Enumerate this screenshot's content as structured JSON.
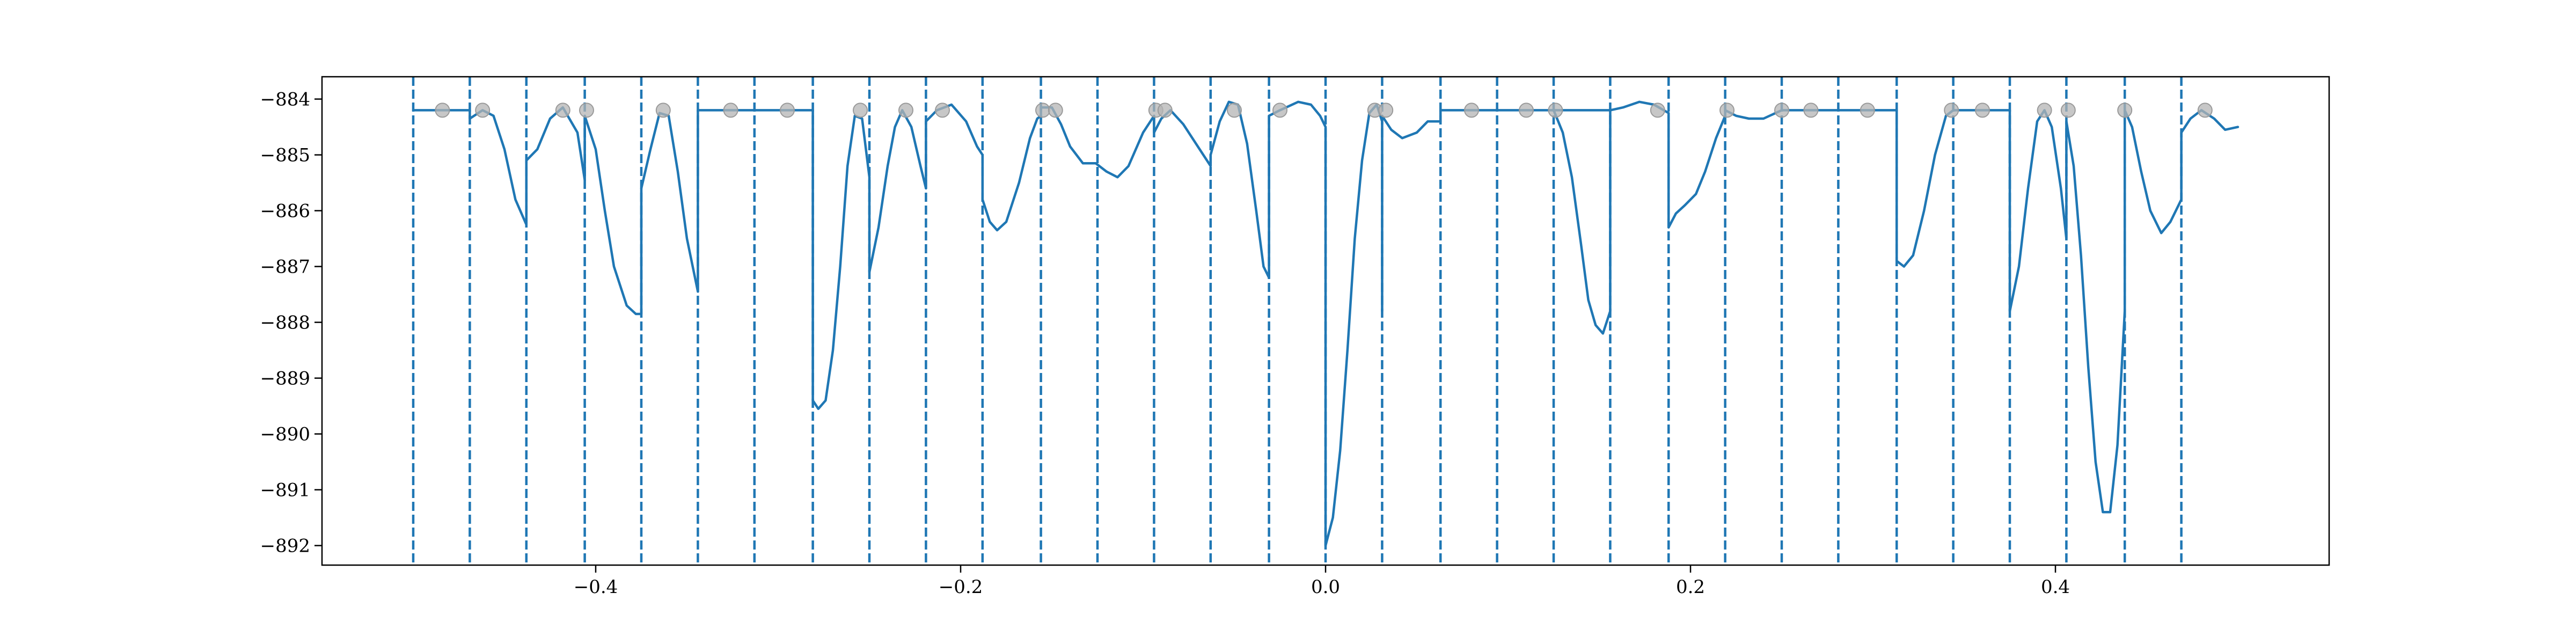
{
  "chart_data": {
    "type": "line",
    "title": "",
    "xlabel": "",
    "ylabel": "",
    "xlim": [
      -0.55,
      0.55
    ],
    "ylim": [
      -892.35,
      -883.6
    ],
    "x_ticks": [
      -0.4,
      -0.2,
      0.0,
      0.2,
      0.4
    ],
    "x_tick_labels": [
      "−0.4",
      "−0.2",
      "0.0",
      "0.2",
      "0.4"
    ],
    "y_ticks": [
      -884,
      -885,
      -886,
      -887,
      -888,
      -889,
      -890,
      -891,
      -892
    ],
    "y_tick_labels": [
      "−884",
      "−885",
      "−886",
      "−887",
      "−888",
      "−889",
      "−890",
      "−891",
      "−892"
    ],
    "grid": false,
    "colors": {
      "line": "#1f77b4",
      "markers": "#b4b4b4",
      "axes": "#000000"
    },
    "vertical_dashed_lines_x": [
      -0.5,
      -0.469,
      -0.438,
      -0.406,
      -0.375,
      -0.344,
      -0.313,
      -0.281,
      -0.25,
      -0.219,
      -0.188,
      -0.156,
      -0.125,
      -0.094,
      -0.063,
      -0.031,
      0.0,
      0.031,
      0.063,
      0.094,
      0.125,
      0.156,
      0.188,
      0.219,
      0.25,
      0.281,
      0.313,
      0.344,
      0.375,
      0.406,
      0.438,
      0.469
    ],
    "markers": {
      "y": -884.2,
      "x": [
        -0.484,
        -0.462,
        -0.418,
        -0.405,
        -0.363,
        -0.326,
        -0.295,
        -0.255,
        -0.23,
        -0.21,
        -0.155,
        -0.148,
        -0.093,
        -0.088,
        -0.05,
        -0.025,
        0.027,
        0.033,
        0.08,
        0.11,
        0.126,
        0.182,
        0.22,
        0.25,
        0.266,
        0.297,
        0.343,
        0.36,
        0.394,
        0.407,
        0.438,
        0.482
      ]
    },
    "series": [
      {
        "points": [
          [
            -0.5,
            -884.2
          ],
          [
            -0.469,
            -884.2
          ],
          [
            -0.469,
            -884.35
          ],
          [
            -0.462,
            -884.2
          ],
          [
            -0.456,
            -884.3
          ],
          [
            -0.45,
            -884.9
          ],
          [
            -0.444,
            -885.8
          ],
          [
            -0.438,
            -886.25
          ],
          [
            -0.438,
            -885.1
          ],
          [
            -0.432,
            -884.9
          ],
          [
            -0.425,
            -884.35
          ],
          [
            -0.418,
            -884.15
          ],
          [
            -0.41,
            -884.6
          ],
          [
            -0.406,
            -885.45
          ],
          [
            -0.406,
            -884.3
          ],
          [
            -0.4,
            -884.9
          ],
          [
            -0.395,
            -886.0
          ],
          [
            -0.39,
            -887.0
          ],
          [
            -0.383,
            -887.7
          ],
          [
            -0.378,
            -887.85
          ],
          [
            -0.375,
            -887.85
          ],
          [
            -0.375,
            -885.6
          ],
          [
            -0.37,
            -884.9
          ],
          [
            -0.365,
            -884.25
          ],
          [
            -0.36,
            -884.3
          ],
          [
            -0.355,
            -885.3
          ],
          [
            -0.35,
            -886.5
          ],
          [
            -0.344,
            -887.45
          ],
          [
            -0.344,
            -884.2
          ],
          [
            -0.281,
            -884.2
          ],
          [
            -0.281,
            -889.4
          ],
          [
            -0.278,
            -889.55
          ],
          [
            -0.274,
            -889.4
          ],
          [
            -0.27,
            -888.5
          ],
          [
            -0.266,
            -887.0
          ],
          [
            -0.262,
            -885.2
          ],
          [
            -0.258,
            -884.3
          ],
          [
            -0.254,
            -884.35
          ],
          [
            -0.25,
            -885.4
          ],
          [
            -0.25,
            -887.1
          ],
          [
            -0.245,
            -886.3
          ],
          [
            -0.24,
            -885.2
          ],
          [
            -0.236,
            -884.5
          ],
          [
            -0.232,
            -884.2
          ],
          [
            -0.227,
            -884.5
          ],
          [
            -0.222,
            -885.2
          ],
          [
            -0.219,
            -885.6
          ],
          [
            -0.219,
            -884.4
          ],
          [
            -0.213,
            -884.2
          ],
          [
            -0.205,
            -884.1
          ],
          [
            -0.197,
            -884.4
          ],
          [
            -0.191,
            -884.85
          ],
          [
            -0.188,
            -885.0
          ],
          [
            -0.188,
            -885.8
          ],
          [
            -0.184,
            -886.2
          ],
          [
            -0.18,
            -886.35
          ],
          [
            -0.175,
            -886.2
          ],
          [
            -0.168,
            -885.5
          ],
          [
            -0.162,
            -884.7
          ],
          [
            -0.158,
            -884.35
          ],
          [
            -0.156,
            -884.3
          ],
          [
            -0.156,
            -884.15
          ],
          [
            -0.15,
            -884.15
          ],
          [
            -0.145,
            -884.45
          ],
          [
            -0.14,
            -884.85
          ],
          [
            -0.133,
            -885.15
          ],
          [
            -0.126,
            -885.15
          ],
          [
            -0.12,
            -885.3
          ],
          [
            -0.114,
            -885.4
          ],
          [
            -0.108,
            -885.2
          ],
          [
            -0.1,
            -884.6
          ],
          [
            -0.094,
            -884.3
          ],
          [
            -0.094,
            -884.6
          ],
          [
            -0.09,
            -884.35
          ],
          [
            -0.085,
            -884.2
          ],
          [
            -0.078,
            -884.45
          ],
          [
            -0.07,
            -884.85
          ],
          [
            -0.063,
            -885.2
          ],
          [
            -0.063,
            -885.0
          ],
          [
            -0.058,
            -884.4
          ],
          [
            -0.053,
            -884.05
          ],
          [
            -0.048,
            -884.1
          ],
          [
            -0.043,
            -884.8
          ],
          [
            -0.038,
            -886.0
          ],
          [
            -0.034,
            -887.0
          ],
          [
            -0.031,
            -887.2
          ],
          [
            -0.031,
            -884.3
          ],
          [
            -0.025,
            -884.2
          ],
          [
            -0.015,
            -884.05
          ],
          [
            -0.008,
            -884.1
          ],
          [
            -0.003,
            -884.3
          ],
          [
            0.0,
            -884.5
          ],
          [
            0.0,
            -892.0
          ],
          [
            0.004,
            -891.5
          ],
          [
            0.008,
            -890.3
          ],
          [
            0.012,
            -888.5
          ],
          [
            0.016,
            -886.5
          ],
          [
            0.02,
            -885.1
          ],
          [
            0.024,
            -884.25
          ],
          [
            0.028,
            -884.1
          ],
          [
            0.031,
            -884.4
          ],
          [
            0.031,
            -887.8
          ],
          [
            0.031,
            -884.3
          ],
          [
            0.036,
            -884.55
          ],
          [
            0.042,
            -884.7
          ],
          [
            0.05,
            -884.6
          ],
          [
            0.056,
            -884.4
          ],
          [
            0.063,
            -884.4
          ],
          [
            0.063,
            -884.2
          ],
          [
            0.156,
            -884.2
          ],
          [
            0.156,
            -887.8
          ],
          [
            0.152,
            -888.2
          ],
          [
            0.148,
            -888.05
          ],
          [
            0.144,
            -887.6
          ],
          [
            0.14,
            -886.6
          ],
          [
            0.135,
            -885.4
          ],
          [
            0.13,
            -884.6
          ],
          [
            0.125,
            -884.2
          ],
          [
            0.156,
            -884.2
          ],
          [
            0.163,
            -884.15
          ],
          [
            0.172,
            -884.05
          ],
          [
            0.18,
            -884.1
          ],
          [
            0.188,
            -884.25
          ],
          [
            0.188,
            -886.3
          ],
          [
            0.192,
            -886.05
          ],
          [
            0.197,
            -885.9
          ],
          [
            0.203,
            -885.7
          ],
          [
            0.208,
            -885.3
          ],
          [
            0.214,
            -884.7
          ],
          [
            0.219,
            -884.3
          ],
          [
            0.219,
            -884.2
          ],
          [
            0.225,
            -884.3
          ],
          [
            0.232,
            -884.35
          ],
          [
            0.24,
            -884.35
          ],
          [
            0.25,
            -884.2
          ],
          [
            0.25,
            -884.2
          ],
          [
            0.313,
            -884.2
          ],
          [
            0.313,
            -886.9
          ],
          [
            0.317,
            -887.0
          ],
          [
            0.322,
            -886.8
          ],
          [
            0.328,
            -886.0
          ],
          [
            0.334,
            -885.0
          ],
          [
            0.34,
            -884.3
          ],
          [
            0.344,
            -884.2
          ],
          [
            0.344,
            -884.2
          ],
          [
            0.375,
            -884.2
          ],
          [
            0.375,
            -887.8
          ],
          [
            0.38,
            -887.0
          ],
          [
            0.385,
            -885.6
          ],
          [
            0.39,
            -884.4
          ],
          [
            0.394,
            -884.2
          ],
          [
            0.398,
            -884.5
          ],
          [
            0.403,
            -885.6
          ],
          [
            0.406,
            -886.5
          ],
          [
            0.406,
            -884.4
          ],
          [
            0.41,
            -885.2
          ],
          [
            0.414,
            -886.8
          ],
          [
            0.418,
            -888.8
          ],
          [
            0.422,
            -890.5
          ],
          [
            0.426,
            -891.4
          ],
          [
            0.43,
            -891.4
          ],
          [
            0.434,
            -890.2
          ],
          [
            0.438,
            -887.8
          ],
          [
            0.438,
            -884.2
          ],
          [
            0.442,
            -884.5
          ],
          [
            0.447,
            -885.3
          ],
          [
            0.452,
            -886.0
          ],
          [
            0.458,
            -886.4
          ],
          [
            0.463,
            -886.2
          ],
          [
            0.469,
            -885.8
          ],
          [
            0.469,
            -884.6
          ],
          [
            0.474,
            -884.35
          ],
          [
            0.48,
            -884.2
          ],
          [
            0.487,
            -884.35
          ],
          [
            0.493,
            -884.55
          ],
          [
            0.5,
            -884.5
          ]
        ]
      }
    ]
  }
}
